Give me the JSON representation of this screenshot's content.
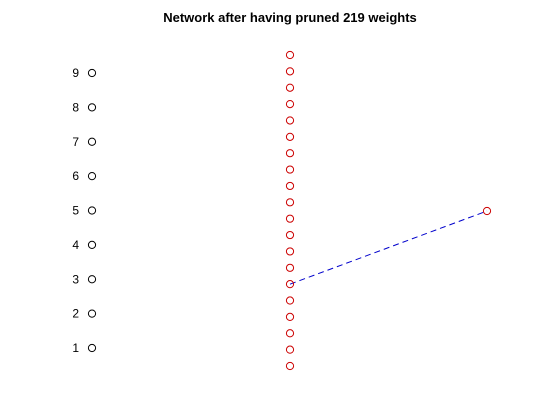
{
  "title": "Network after having pruned 219 weights",
  "input_layer": {
    "labels": [
      "1",
      "2",
      "3",
      "4",
      "5",
      "6",
      "7",
      "8",
      "9"
    ],
    "node_color": "#000000"
  },
  "hidden_layer": {
    "node_count": 20,
    "node_color": "#cc0000"
  },
  "output_layer": {
    "node_count": 1,
    "node_color": "#cc0000"
  },
  "remaining_weights": [
    {
      "from_layer": "hidden",
      "from_index": 6,
      "to_layer": "output",
      "to_index": 1,
      "color": "#0000cc",
      "style": "dashed"
    }
  ]
}
